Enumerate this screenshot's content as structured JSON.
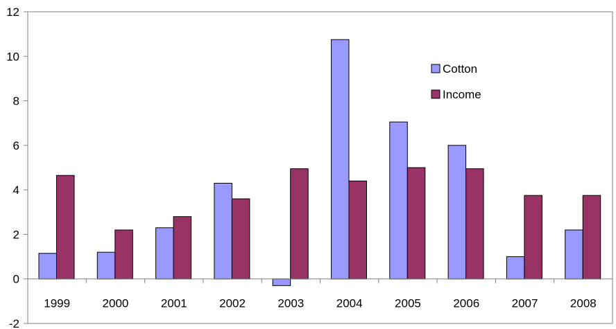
{
  "chart_data": {
    "type": "bar",
    "title": "",
    "xlabel": "",
    "ylabel": "",
    "categories": [
      "1999",
      "2000",
      "2001",
      "2002",
      "2003",
      "2004",
      "2005",
      "2006",
      "2007",
      "2008"
    ],
    "series": [
      {
        "name": "Cotton",
        "color": "#9999ff",
        "values": [
          1.15,
          1.2,
          2.3,
          4.3,
          -0.3,
          10.75,
          7.05,
          6.0,
          1.0,
          2.2
        ]
      },
      {
        "name": "Income",
        "color": "#993366",
        "values": [
          4.65,
          2.2,
          2.8,
          3.6,
          4.95,
          4.4,
          5.0,
          4.95,
          3.75,
          3.75
        ]
      }
    ],
    "ylim": [
      -2,
      12
    ],
    "yticks": [
      -2,
      0,
      2,
      4,
      6,
      8,
      10,
      12
    ],
    "grid": false,
    "legend": {
      "position": "top-right-inside"
    }
  }
}
